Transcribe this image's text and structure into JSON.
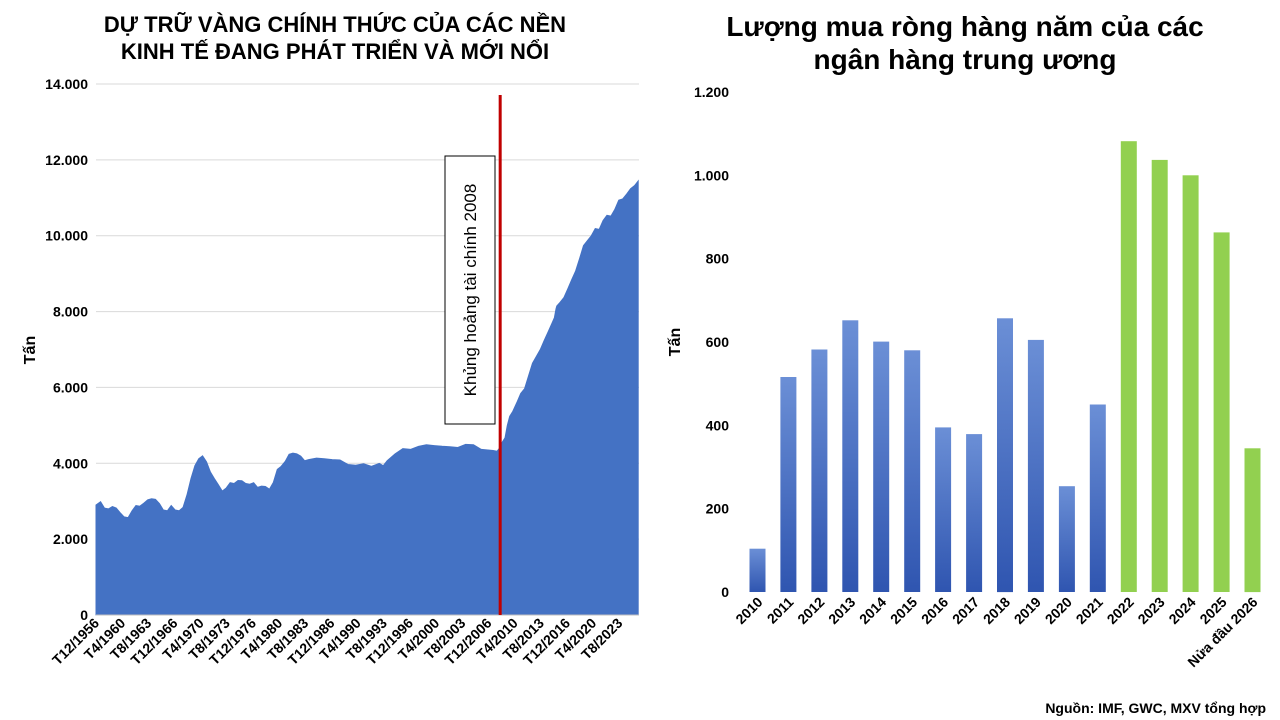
{
  "source_note": "Nguồn: IMF, GWC, MXV tổng hợp",
  "chart_data": [
    {
      "type": "area",
      "title_lines": [
        "DỰ TRỮ VÀNG CHÍNH THỨC CỦA CÁC NỀN",
        "KINH TẾ ĐANG PHÁT TRIỂN VÀ MỚI NỔI"
      ],
      "ylabel": "Tấn",
      "xlabel": "",
      "ylim": [
        0,
        14000
      ],
      "yticks": [
        0,
        2000,
        4000,
        6000,
        8000,
        10000,
        12000,
        14000
      ],
      "ytick_labels": [
        "0",
        "2.000",
        "4.000",
        "6.000",
        "8.000",
        "10.000",
        "12.000",
        "14.000"
      ],
      "x_range": [
        1956.917,
        2026.083
      ],
      "xtick_labels": [
        "T12/1956",
        "T4/1960",
        "T8/1963",
        "T12/1966",
        "T4/1970",
        "T8/1973",
        "T12/1976",
        "T4/1980",
        "T8/1983",
        "T12/1986",
        "T4/1990",
        "T8/1993",
        "T12/1996",
        "T4/2000",
        "T8/2003",
        "T12/2006",
        "T4/2010",
        "T8/2013",
        "T12/2016",
        "T4/2020",
        "T8/2023"
      ],
      "xtick_values": [
        1956.917,
        1960.25,
        1963.583,
        1966.917,
        1970.25,
        1973.583,
        1976.917,
        1980.25,
        1983.583,
        1986.917,
        1990.25,
        1993.583,
        1996.917,
        2000.25,
        2003.583,
        2006.917,
        2010.25,
        2013.583,
        2016.917,
        2020.25,
        2023.583
      ],
      "grid": true,
      "color": "#4472C4",
      "series": [
        {
          "x": [
            1956.9,
            1957.5,
            1958.0,
            1958.5,
            1959.0,
            1959.5,
            1960.0,
            1960.5,
            1961.0,
            1961.5,
            1962.0,
            1962.5,
            1963.0,
            1963.5,
            1964.0,
            1964.5,
            1965.0,
            1965.5,
            1966.0,
            1966.5,
            1967.0,
            1967.5,
            1968.0,
            1968.5,
            1969.0,
            1969.5,
            1970.0,
            1970.5,
            1971.0,
            1971.5,
            1972.0,
            1972.5,
            1973.0,
            1973.5,
            1974.0,
            1974.5,
            1975.0,
            1975.5,
            1976.0,
            1976.5,
            1977.0,
            1977.5,
            1978.0,
            1978.5,
            1979.0,
            1979.5,
            1980.0,
            1980.5,
            1981.0,
            1981.5,
            1982.0,
            1982.5,
            1983.0,
            1983.5,
            1984.0,
            1985.0,
            1986.0,
            1987.0,
            1988.0,
            1989.0,
            1990.0,
            1991.0,
            1992.0,
            1993.0,
            1993.5,
            1994.0,
            1995.0,
            1996.0,
            1997.0,
            1998.0,
            1999.0,
            2000.0,
            2001.0,
            2002.0,
            2003.0,
            2004.0,
            2005.0,
            2006.0,
            2007.0,
            2007.5,
            2008.0,
            2008.3,
            2008.6,
            2009.0,
            2009.3,
            2009.6,
            2010.0,
            2010.5,
            2011.0,
            2011.5,
            2012.0,
            2012.5,
            2013.0,
            2013.5,
            2014.0,
            2014.5,
            2015.0,
            2015.3,
            2015.5,
            2015.6,
            2016.0,
            2016.5,
            2017.0,
            2017.5,
            2018.0,
            2018.5,
            2019.0,
            2019.5,
            2020.0,
            2020.5,
            2021.0,
            2021.5,
            2022.0,
            2022.5,
            2023.0,
            2023.5,
            2024.0,
            2024.5,
            2025.0,
            2025.5,
            2026.0
          ],
          "y": [
            2900,
            2950,
            2850,
            2800,
            2820,
            2850,
            2700,
            2550,
            2600,
            2750,
            2850,
            2900,
            2950,
            3000,
            3100,
            3050,
            2900,
            2800,
            2750,
            2850,
            2800,
            2750,
            2800,
            3200,
            3600,
            3900,
            4150,
            4200,
            4000,
            3800,
            3600,
            3400,
            3300,
            3350,
            3450,
            3500,
            3550,
            3500,
            3500,
            3450,
            3450,
            3400,
            3400,
            3350,
            3350,
            3500,
            3800,
            3950,
            4050,
            4200,
            4300,
            4250,
            4150,
            4100,
            4100,
            4100,
            4150,
            4100,
            4050,
            4000,
            3950,
            3950,
            3950,
            4000,
            3900,
            4100,
            4250,
            4350,
            4400,
            4450,
            4450,
            4500,
            4450,
            4400,
            4450,
            4500,
            4450,
            4400,
            4350,
            4300,
            4350,
            4400,
            4500,
            4700,
            5000,
            5200,
            5400,
            5600,
            5800,
            6000,
            6300,
            6600,
            6850,
            7000,
            7200,
            7500,
            7700,
            7800,
            8100,
            8150,
            8200,
            8400,
            8600,
            8800,
            9100,
            9400,
            9700,
            9900,
            10000,
            10150,
            10200,
            10400,
            10500,
            10550,
            10700,
            10900,
            11000,
            11100,
            11200,
            11350,
            11450
          ]
        }
      ],
      "annotations": [
        {
          "type": "vline",
          "x": 2008.4,
          "color": "#C00000"
        },
        {
          "type": "textbox",
          "text": "Khủng hoảng tài chính 2008",
          "vertical": true
        }
      ]
    },
    {
      "type": "bar",
      "title_lines": [
        "Lượng mua ròng hàng năm của các",
        "ngân hàng trung ương"
      ],
      "ylabel": "Tấn",
      "xlabel": "",
      "ylim": [
        0,
        1200
      ],
      "yticks": [
        0,
        200,
        400,
        600,
        800,
        1000,
        1200
      ],
      "ytick_labels": [
        "0",
        "200",
        "400",
        "600",
        "800",
        "1.000",
        "1.200"
      ],
      "grid": false,
      "categories": [
        "2010",
        "2011",
        "2012",
        "2013",
        "2014",
        "2015",
        "2016",
        "2017",
        "2018",
        "2019",
        "2020",
        "2021",
        "2022",
        "2023",
        "2024",
        "2025",
        "Nửa đầu 2026"
      ],
      "values": [
        104,
        516,
        582,
        652,
        601,
        580,
        395,
        379,
        657,
        605,
        254,
        450,
        1082,
        1037,
        1000,
        863,
        345
      ],
      "colors": [
        "#4472C4",
        "#4472C4",
        "#4472C4",
        "#4472C4",
        "#4472C4",
        "#4472C4",
        "#4472C4",
        "#4472C4",
        "#4472C4",
        "#4472C4",
        "#4472C4",
        "#4472C4",
        "#92D050",
        "#92D050",
        "#92D050",
        "#92D050",
        "#92D050"
      ]
    }
  ]
}
